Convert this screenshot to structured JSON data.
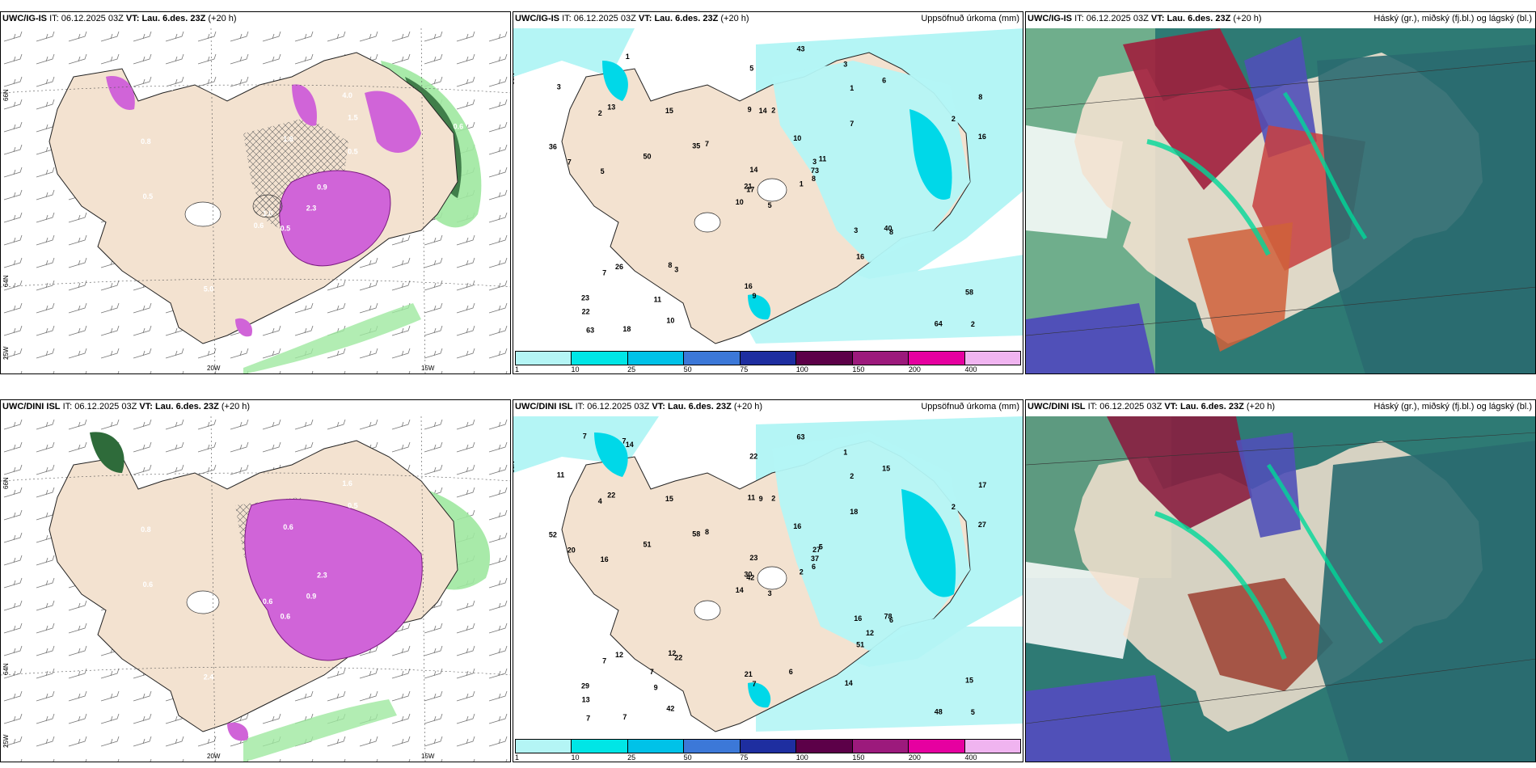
{
  "panels": [
    {
      "id": "p1",
      "model": "UWC/IG-IS",
      "it_label": "IT:",
      "it": "06.12.2025 03Z",
      "vt_label": "VT:",
      "vt": "Lau. 6.des. 23Z",
      "lead": "(+20 h)",
      "right_title": "",
      "kind": "wind"
    },
    {
      "id": "p2",
      "model": "UWC/IG-IS",
      "it_label": "IT:",
      "it": "06.12.2025 03Z",
      "vt_label": "VT:",
      "vt": "Lau. 6.des. 23Z",
      "lead": "(+20 h)",
      "right_title": "Uppsöfnuð úrkoma (mm)",
      "kind": "precip"
    },
    {
      "id": "p3",
      "model": "UWC/IG-IS",
      "it_label": "IT:",
      "it": "06.12.2025 03Z",
      "vt_label": "VT:",
      "vt": "Lau. 6.des. 23Z",
      "lead": "(+20 h)",
      "right_title": "Háský (gr.), miðský (fj.bl.) og lágský (bl.)",
      "kind": "cloud"
    },
    {
      "id": "p4",
      "model": "UWC/DINI ISL",
      "it_label": "IT:",
      "it": "06.12.2025 03Z",
      "vt_label": "VT:",
      "vt": "Lau. 6.des. 23Z",
      "lead": "(+20 h)",
      "right_title": "",
      "kind": "wind"
    },
    {
      "id": "p5",
      "model": "UWC/DINI ISL",
      "it_label": "IT:",
      "it": "06.12.2025 03Z",
      "vt_label": "VT:",
      "vt": "Lau. 6.des. 23Z",
      "lead": "(+20 h)",
      "right_title": "Uppsöfnuð úrkoma (mm)",
      "kind": "precip"
    },
    {
      "id": "p6",
      "model": "UWC/DINI ISL",
      "it_label": "IT:",
      "it": "06.12.2025 03Z",
      "vt_label": "VT:",
      "vt": "Lau. 6.des. 23Z",
      "lead": "(+20 h)",
      "right_title": "Háský (gr.), miðský (fj.bl.) og lágský (bl.)",
      "kind": "cloud"
    }
  ],
  "colorbar": {
    "ticks": [
      "1",
      "10",
      "25",
      "50",
      "75",
      "100",
      "150",
      "200",
      "400"
    ],
    "colors": [
      "#b4f5f5",
      "#00e6e6",
      "#00c2e8",
      "#3c78d8",
      "#1e2ea0",
      "#5c0048",
      "#9c1a7c",
      "#e600a0",
      "#f0b4f0"
    ]
  },
  "axis_labels": {
    "lat66": "66N",
    "lat64": "64N",
    "lon20": "20W",
    "lon15": "15W",
    "lon25": "25W"
  },
  "colors": {
    "land": "#f3e2d0",
    "sea": "#ffffff",
    "precip_light": "#b4f5f5",
    "precip_mid": "#00d8e8",
    "magenta": "#d064d8",
    "green": "#9fe8a0",
    "cloud_teal": "#2e7a74",
    "cloud_red": "#c84040",
    "cloud_purple": "#5050b8"
  },
  "p1_numbers": [
    "0.5",
    "0.8",
    "1.0",
    "1.1",
    "0.9",
    "5.0",
    "4.0",
    "1.8",
    "1.5",
    "2.3",
    "0.4",
    "0.6",
    "0.5",
    "0.6",
    "0.6",
    "0.5"
  ],
  "p2_numbers": [
    "5",
    "2",
    "17",
    "23",
    "3",
    "3",
    "3",
    "2",
    "1",
    "1",
    "1",
    "2",
    "5",
    "8",
    "10",
    "7",
    "18",
    "9",
    "10",
    "26",
    "7",
    "22",
    "11",
    "14",
    "11",
    "8",
    "13",
    "5",
    "7",
    "3",
    "16",
    "21",
    "16",
    "14",
    "15",
    "6",
    "8",
    "64",
    "58",
    "40",
    "43",
    "35",
    "50",
    "16",
    "10",
    "36",
    "73",
    "63",
    "9",
    "8",
    "7",
    "2",
    "3"
  ],
  "p4_numbers": [
    "0.6",
    "0.8",
    "0.6",
    "2.2",
    "2.3",
    "2.4",
    "1.6",
    "0.6",
    "0.5",
    "0.9",
    "0.3",
    "1.0",
    "0.6"
  ],
  "p5_numbers": [
    "3",
    "4",
    "42",
    "29",
    "27",
    "22",
    "1",
    "2",
    "2",
    "2",
    "14",
    "5",
    "16",
    "17",
    "14",
    "18",
    "7",
    "11",
    "16",
    "12",
    "8",
    "13",
    "9",
    "9",
    "5",
    "6",
    "22",
    "22",
    "20",
    "16",
    "27",
    "30",
    "21",
    "23",
    "15",
    "15",
    "12",
    "48",
    "15",
    "78",
    "63",
    "58",
    "51",
    "51",
    "42",
    "52",
    "37",
    "7",
    "7",
    "6",
    "7",
    "2",
    "11",
    "12",
    "14",
    "7",
    "7",
    "7",
    "6"
  ]
}
